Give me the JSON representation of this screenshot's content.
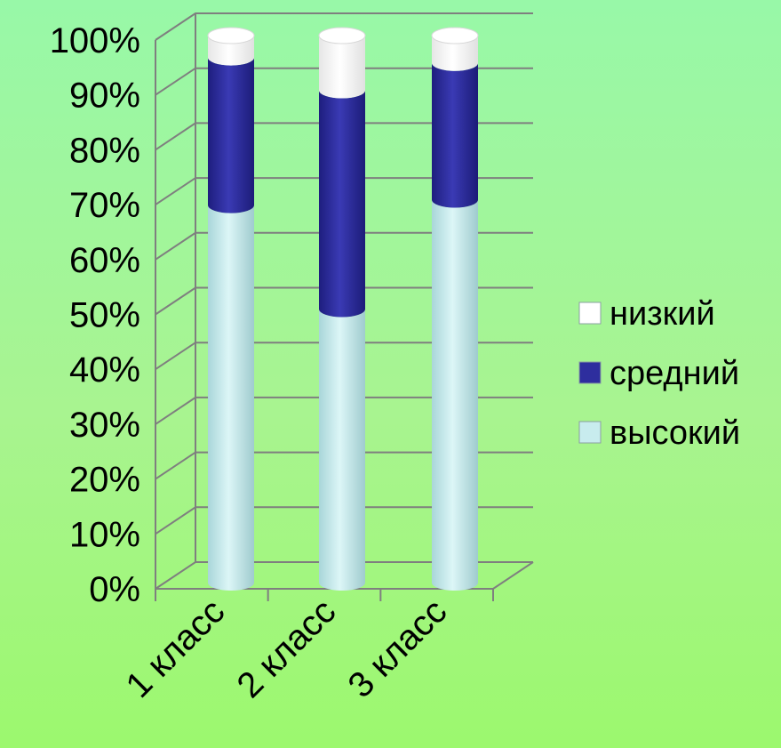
{
  "chart_data": {
    "type": "bar",
    "stacked": true,
    "percent": true,
    "three_d": true,
    "categories": [
      "1 класс",
      "2 класс",
      "3 класс"
    ],
    "series": [
      {
        "name": "высокий",
        "values": [
          69,
          50,
          70
        ],
        "color": "#c8ecee"
      },
      {
        "name": "средний",
        "values": [
          27,
          40,
          25
        ],
        "color": "#2e2e9e"
      },
      {
        "name": "низкий",
        "values": [
          4,
          10,
          5
        ],
        "color": "#ffffff"
      }
    ],
    "ylim": [
      0,
      100
    ],
    "yticks": [
      "0%",
      "10%",
      "20%",
      "30%",
      "40%",
      "50%",
      "60%",
      "70%",
      "80%",
      "90%",
      "100%"
    ],
    "grid": true,
    "legend_position": "right",
    "legend_order": [
      "низкий",
      "средний",
      "высокий"
    ],
    "title": "",
    "xlabel": "",
    "ylabel": ""
  }
}
